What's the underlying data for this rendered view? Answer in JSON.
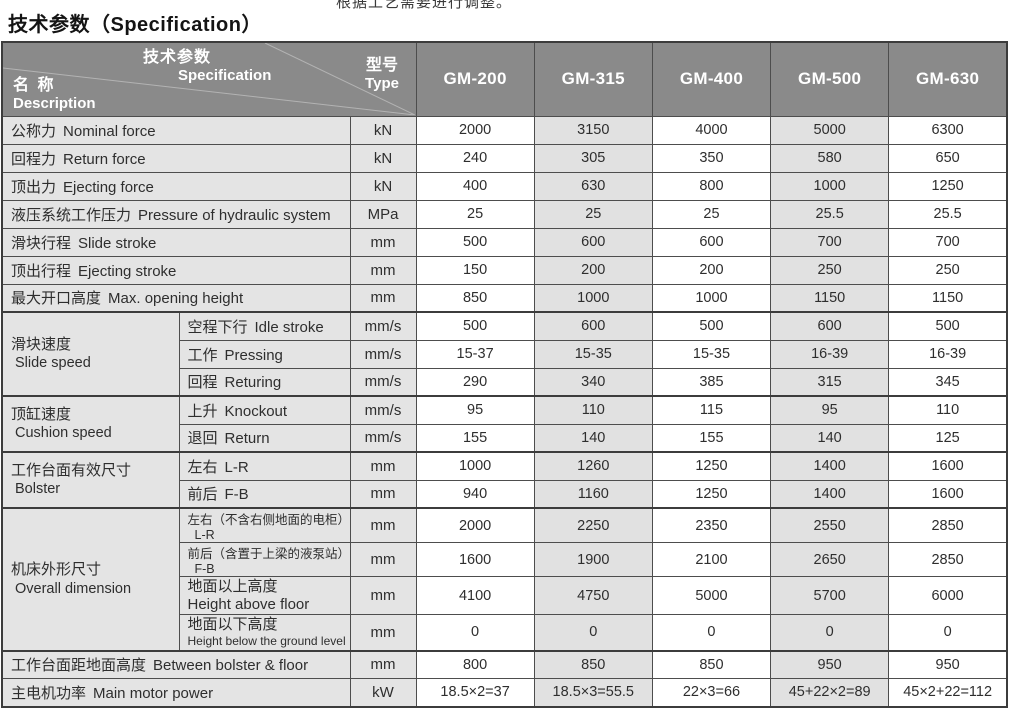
{
  "page": {
    "clipped_top_text": "根据工艺需要进行调整。",
    "title": "技术参数（Specification）"
  },
  "colors": {
    "header_bg": "#8a8a8a",
    "header_text": "#ffffff",
    "label_bg": "#e4e4e4",
    "stripe_bg": "#e1e1e1",
    "border": "#4d4d4d",
    "text": "#2e2e2e"
  },
  "table": {
    "header": {
      "corner": {
        "param_zh": "技术参数",
        "param_en": "Specification",
        "name_zh": "名 称",
        "name_en": "Description",
        "type_zh": "型号",
        "type_en": "Type"
      },
      "models": [
        "GM-200",
        "GM-315",
        "GM-400",
        "GM-500",
        "GM-630"
      ]
    },
    "rows": [
      {
        "zh": "公称力",
        "en": "Nominal force",
        "unit": "kN",
        "values": [
          "2000",
          "3150",
          "4000",
          "5000",
          "6300"
        ]
      },
      {
        "zh": "回程力",
        "en": "Return force",
        "unit": "kN",
        "values": [
          "240",
          "305",
          "350",
          "580",
          "650"
        ]
      },
      {
        "zh": "顶出力",
        "en": "Ejecting force",
        "unit": "kN",
        "values": [
          "400",
          "630",
          "800",
          "1000",
          "1250"
        ]
      },
      {
        "zh": "液压系统工作压力",
        "en": "Pressure of hydraulic system",
        "unit": "MPa",
        "values": [
          "25",
          "25",
          "25",
          "25.5",
          "25.5"
        ]
      },
      {
        "zh": "滑块行程",
        "en": "Slide stroke",
        "unit": "mm",
        "values": [
          "500",
          "600",
          "600",
          "700",
          "700"
        ]
      },
      {
        "zh": "顶出行程",
        "en": "Ejecting stroke",
        "unit": "mm",
        "values": [
          "150",
          "200",
          "200",
          "250",
          "250"
        ]
      },
      {
        "zh": "最大开口高度",
        "en": "Max. opening height",
        "unit": "mm",
        "values": [
          "850",
          "1000",
          "1000",
          "1150",
          "1150"
        ]
      },
      {
        "group": {
          "zh": "滑块速度",
          "en": "Slide speed",
          "rowspan": 3
        },
        "sub": true,
        "zh": "空程下行",
        "en": "Idle stroke",
        "unit": "mm/s",
        "values": [
          "500",
          "600",
          "500",
          "600",
          "500"
        ]
      },
      {
        "sub": true,
        "zh": "工作",
        "en": "Pressing",
        "unit": "mm/s",
        "values": [
          "15-37",
          "15-35",
          "15-35",
          "16-39",
          "16-39"
        ]
      },
      {
        "sub": true,
        "zh": "回程",
        "en": "Returing",
        "unit": "mm/s",
        "values": [
          "290",
          "340",
          "385",
          "315",
          "345"
        ]
      },
      {
        "group": {
          "zh": "顶缸速度",
          "en": "Cushion speed",
          "rowspan": 2
        },
        "sub": true,
        "zh": "上升",
        "en": "Knockout",
        "unit": "mm/s",
        "values": [
          "95",
          "110",
          "115",
          "95",
          "110"
        ]
      },
      {
        "sub": true,
        "zh": "退回",
        "en": "Return",
        "unit": "mm/s",
        "values": [
          "155",
          "140",
          "155",
          "140",
          "125"
        ]
      },
      {
        "group": {
          "zh": "工作台面有效尺寸",
          "en": "Bolster",
          "rowspan": 2
        },
        "sub": true,
        "zh": "左右",
        "en": "L-R",
        "unit": "mm",
        "values": [
          "1000",
          "1260",
          "1250",
          "1400",
          "1600"
        ]
      },
      {
        "sub": true,
        "zh": "前后",
        "en": "F-B",
        "unit": "mm",
        "values": [
          "940",
          "1160",
          "1250",
          "1400",
          "1600"
        ]
      },
      {
        "group": {
          "zh": "机床外形尺寸",
          "en": "Overall dimension",
          "rowspan": 4
        },
        "sub": true,
        "small": true,
        "zh": "左右（不含右侧地面的电柜）",
        "en": "L-R",
        "unit": "mm",
        "values": [
          "2000",
          "2250",
          "2350",
          "2550",
          "2850"
        ]
      },
      {
        "sub": true,
        "small": true,
        "zh": "前后（含置于上梁的液泵站）",
        "en": "F-B",
        "unit": "mm",
        "values": [
          "1600",
          "1900",
          "2100",
          "2650",
          "2850"
        ]
      },
      {
        "sub": true,
        "stacked": true,
        "zh": "地面以上高度",
        "en": "Height above floor",
        "unit": "mm",
        "values": [
          "4100",
          "4750",
          "5000",
          "5700",
          "6000"
        ]
      },
      {
        "sub": true,
        "stacked": true,
        "small_en": true,
        "zh": "地面以下高度",
        "en": "Height below the ground level",
        "unit": "mm",
        "values": [
          "0",
          "0",
          "0",
          "0",
          "0"
        ]
      },
      {
        "section": true,
        "zh": "工作台面距地面高度",
        "en": "Between bolster & floor",
        "unit": "mm",
        "values": [
          "800",
          "850",
          "850",
          "950",
          "950"
        ]
      },
      {
        "zh": "主电机功率",
        "en": "Main motor power",
        "unit": "kW",
        "values": [
          "18.5×2=37",
          "18.5×3=55.5",
          "22×3=66",
          "45+22×2=89",
          "45×2+22=112"
        ]
      }
    ]
  }
}
